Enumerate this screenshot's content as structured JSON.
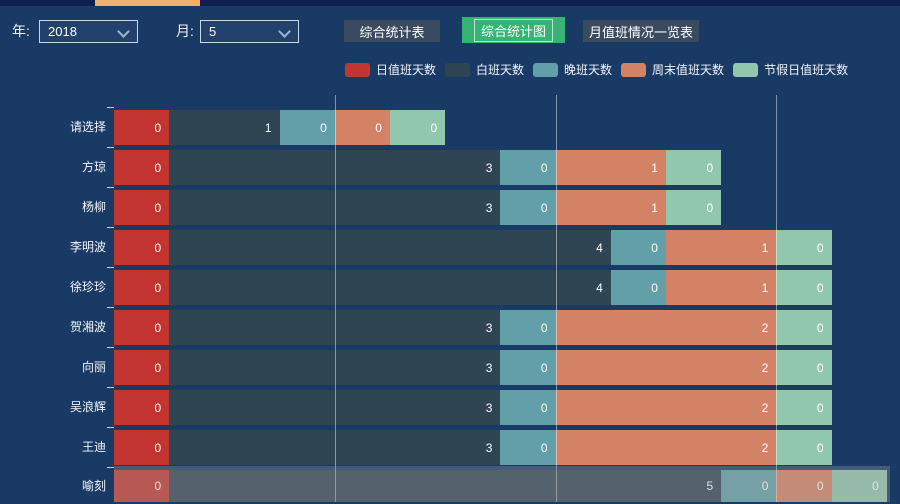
{
  "topbar": {
    "year_label": "年:",
    "year_value": "2018",
    "month_label": "月:",
    "month_value": "5",
    "buttons": [
      {
        "label": "综合统计表",
        "active": false
      },
      {
        "label": "综合统计图",
        "active": true
      },
      {
        "label": "月值班情况一览表",
        "active": false
      }
    ]
  },
  "legend": [
    {
      "label": "日值班天数",
      "color": "#c23531"
    },
    {
      "label": "白班天数",
      "color": "#2f4554"
    },
    {
      "label": "晚班天数",
      "color": "#61a0a8"
    },
    {
      "label": "周末值班天数",
      "color": "#d48265"
    },
    {
      "label": "节假日值班天数",
      "color": "#91c7ae"
    }
  ],
  "colors": {
    "background": "#1a3a66",
    "top_strip": "#101f4e",
    "top_strip_highlight": "#f0af6b",
    "button_default": "#3a4b61",
    "button_active": "#36b476",
    "gridline": "rgba(255,255,255,0.45)",
    "hover_band": "rgba(163,163,163,0.32)"
  },
  "chart_data": {
    "type": "bar",
    "orientation": "horizontal",
    "stacked": true,
    "categories": [
      "请选择",
      "方琼",
      "杨柳",
      "李明波",
      "徐珍珍",
      "贺湘波",
      "向丽",
      "吴浪辉",
      "王迪",
      "喻刻"
    ],
    "series": [
      {
        "name": "日值班天数",
        "color": "#c23531",
        "values": [
          0,
          0,
          0,
          0,
          0,
          0,
          0,
          0,
          0,
          0
        ],
        "units": [
          1,
          1,
          1,
          1,
          1,
          1,
          1,
          1,
          1,
          1
        ]
      },
      {
        "name": "白班天数",
        "color": "#2f4554",
        "values": [
          1,
          3,
          3,
          4,
          4,
          3,
          3,
          3,
          3,
          5
        ],
        "units": [
          2,
          6,
          6,
          8,
          8,
          6,
          6,
          6,
          6,
          10
        ]
      },
      {
        "name": "晚班天数",
        "color": "#61a0a8",
        "values": [
          0,
          0,
          0,
          0,
          0,
          0,
          0,
          0,
          0,
          0
        ],
        "units": [
          1,
          1,
          1,
          1,
          1,
          1,
          1,
          1,
          1,
          1
        ]
      },
      {
        "name": "周末值班天数",
        "color": "#d48265",
        "values": [
          0,
          1,
          1,
          1,
          1,
          2,
          2,
          2,
          2,
          0
        ],
        "units": [
          1,
          2,
          2,
          2,
          2,
          4,
          4,
          4,
          4,
          1
        ]
      },
      {
        "name": "节假日值班天数",
        "color": "#91c7ae",
        "values": [
          0,
          0,
          0,
          0,
          0,
          0,
          0,
          0,
          0,
          0
        ],
        "units": [
          1,
          1,
          1,
          1,
          1,
          1,
          1,
          1,
          1,
          1
        ]
      }
    ],
    "value_label_position": "inside-right",
    "gridline_units": [
      4,
      8,
      12
    ],
    "legend_position": "top",
    "highlighted_category": "喻刻"
  }
}
